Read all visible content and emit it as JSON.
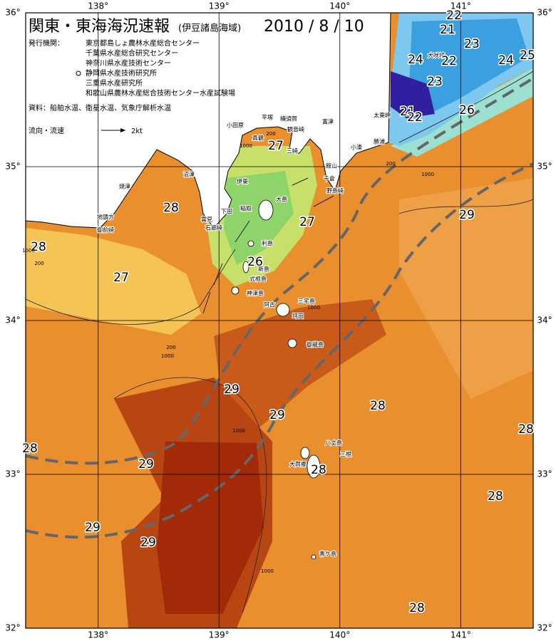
{
  "header": {
    "title": "関東・東海海況速報",
    "subtitle": "(伊豆諸島海域)",
    "date": "2010 / 8 / 10"
  },
  "issuers": {
    "label": "発行機関：",
    "items": [
      "東京都島しょ農林水産総合センター",
      "千葉県水産総合研究センター",
      "神奈川県水産技術センター",
      "静岡県水産技術研究所",
      "三重県水産研究所",
      "和歌山県農林水産総合技術センター水産試験場"
    ]
  },
  "source": "資料：船舶水温、衛星水温、気象庁解析水温",
  "legend": {
    "label": "流向・流速",
    "speed": "2kt"
  },
  "map": {
    "xlim": [
      137.4,
      141.6
    ],
    "ylim": [
      32,
      36
    ],
    "xticks": [
      {
        "value": 138,
        "label": "138°"
      },
      {
        "value": 139,
        "label": "139°"
      },
      {
        "value": 140,
        "label": "140°"
      },
      {
        "value": 141,
        "label": "141°"
      }
    ],
    "yticks": [
      {
        "value": 32,
        "label": "32°"
      },
      {
        "value": 33,
        "label": "33°"
      },
      {
        "value": 34,
        "label": "34°"
      },
      {
        "value": 35,
        "label": "35°"
      },
      {
        "value": 36,
        "label": "36°"
      }
    ]
  },
  "places": [
    "平塚",
    "横須賀",
    "小田原",
    "観音崎",
    "富津",
    "真鶴",
    "三崎",
    "小湊",
    "勝浦",
    "太東岬",
    "犬吠埼",
    "館山",
    "千倉",
    "野島崎",
    "大島",
    "伊東",
    "焼津",
    "沼津",
    "地頭方",
    "御前崎",
    "稲取",
    "下田",
    "雲見",
    "石廊崎",
    "利島",
    "新島",
    "式根島",
    "神津島",
    "三宅島",
    "阿古",
    "坪田",
    "御蔵島",
    "八丈島",
    "三根",
    "大賀郷",
    "青ケ島"
  ],
  "temperature_labels": [
    22,
    21,
    23,
    24,
    22,
    24,
    25,
    23,
    21,
    22,
    26,
    27,
    28,
    27,
    29,
    28,
    27,
    26,
    29,
    29,
    28,
    28,
    28,
    29,
    28,
    28,
    29,
    29,
    28
  ],
  "depth_labels": [
    1000,
    200,
    200,
    1000,
    200,
    1000,
    200,
    1000,
    1000,
    1000,
    1000
  ]
}
